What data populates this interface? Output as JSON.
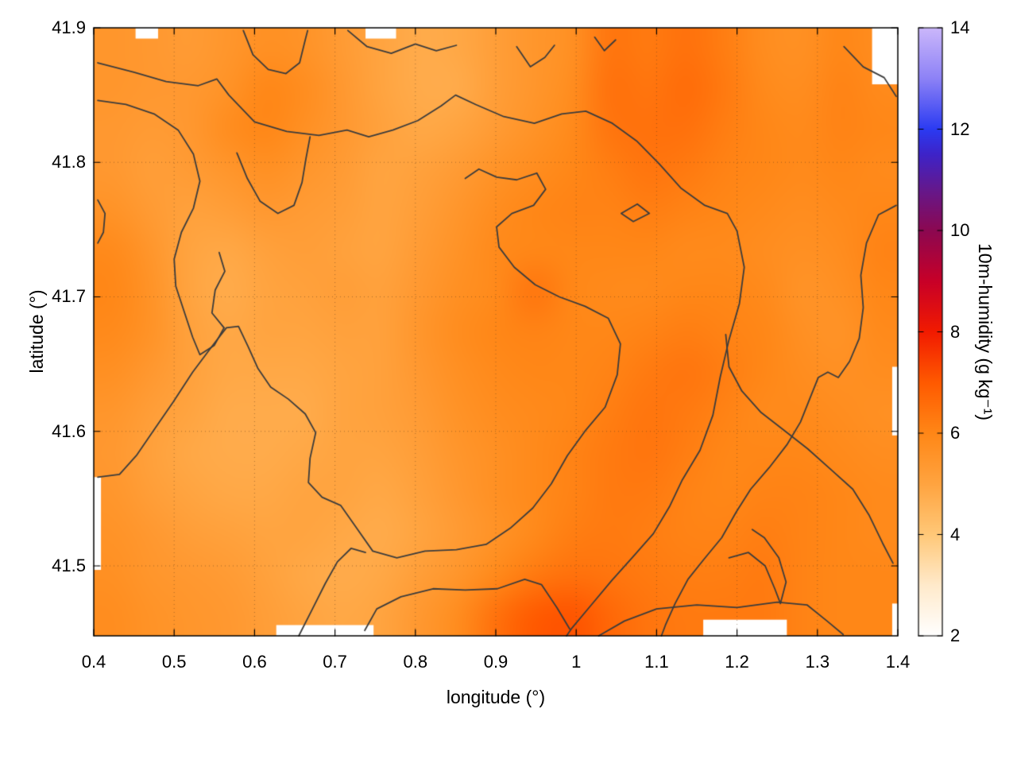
{
  "figure": {
    "background": "#ffffff"
  },
  "axes": {
    "xlabel": "longitude (°)",
    "ylabel": "latitude (°)",
    "xlim": [
      0.4,
      1.4
    ],
    "ylim": [
      41.448,
      41.9
    ],
    "xticks": [
      {
        "v": 0.4,
        "label": "0.4"
      },
      {
        "v": 0.5,
        "label": "0.5"
      },
      {
        "v": 0.6,
        "label": "0.6"
      },
      {
        "v": 0.7,
        "label": "0.7"
      },
      {
        "v": 0.8,
        "label": "0.8"
      },
      {
        "v": 0.9,
        "label": "0.9"
      },
      {
        "v": 1.0,
        "label": "1"
      },
      {
        "v": 1.1,
        "label": "1.1"
      },
      {
        "v": 1.2,
        "label": "1.2"
      },
      {
        "v": 1.3,
        "label": "1.3"
      },
      {
        "v": 1.4,
        "label": "1.4"
      }
    ],
    "yticks": [
      {
        "v": 41.5,
        "label": "41.5"
      },
      {
        "v": 41.6,
        "label": "41.6"
      },
      {
        "v": 41.7,
        "label": "41.7"
      },
      {
        "v": 41.8,
        "label": "41.8"
      },
      {
        "v": 41.9,
        "label": "41.9"
      }
    ],
    "grid_color": "rgba(90,60,30,0.5)"
  },
  "colorbar": {
    "label": "10m-humidity (g kg⁻¹)",
    "min": 2,
    "max": 14,
    "ticks": [
      {
        "v": 2,
        "label": "2"
      },
      {
        "v": 4,
        "label": "4"
      },
      {
        "v": 6,
        "label": "6"
      },
      {
        "v": 8,
        "label": "8"
      },
      {
        "v": 10,
        "label": "10"
      },
      {
        "v": 12,
        "label": "12"
      },
      {
        "v": 14,
        "label": "14"
      }
    ],
    "stops": [
      [
        2,
        "#ffffff"
      ],
      [
        3,
        "#ffeacb"
      ],
      [
        4,
        "#ffc878"
      ],
      [
        5,
        "#ffa440"
      ],
      [
        6,
        "#ff8717"
      ],
      [
        7,
        "#ff5a00"
      ],
      [
        8,
        "#f21b00"
      ],
      [
        9,
        "#c80028"
      ],
      [
        10,
        "#8c0851"
      ],
      [
        10.8,
        "#65188c"
      ],
      [
        11.5,
        "#3e23c8"
      ],
      [
        12,
        "#2b3bf2"
      ],
      [
        13,
        "#8d82f6"
      ],
      [
        14,
        "#cbb7fb"
      ]
    ]
  },
  "chart_data": {
    "type": "heatmap",
    "title": "",
    "x_range": [
      0.4,
      1.4
    ],
    "y_range": [
      41.448,
      41.9
    ],
    "value_label": "10m-humidity (g kg⁻¹)",
    "value_range_shown": [
      2,
      14
    ],
    "grid_cols": 21,
    "grid_rows": 15,
    "values": [
      [
        5.5,
        5.4,
        5.3,
        5.5,
        5.7,
        5.6,
        5.3,
        5.0,
        4.8,
        4.9,
        5.2,
        5.5,
        5.7,
        6.4,
        6.3,
        6.5,
        6.2,
        5.8,
        5.7,
        6.0,
        5.8
      ],
      [
        5.5,
        5.4,
        5.4,
        5.6,
        6.0,
        5.8,
        5.4,
        5.0,
        4.8,
        4.8,
        5.2,
        5.5,
        5.8,
        6.5,
        6.4,
        6.6,
        6.3,
        5.9,
        5.8,
        6.1,
        5.9
      ],
      [
        5.4,
        5.3,
        5.4,
        5.8,
        6.0,
        5.7,
        5.4,
        5.1,
        4.9,
        5.0,
        5.3,
        5.6,
        5.9,
        6.4,
        6.5,
        6.5,
        6.2,
        6.0,
        5.9,
        6.1,
        6.0
      ],
      [
        5.4,
        5.2,
        5.3,
        5.5,
        5.7,
        5.5,
        5.3,
        5.0,
        5.1,
        5.3,
        5.6,
        5.8,
        6.0,
        6.2,
        6.4,
        6.3,
        6.1,
        6.0,
        5.9,
        6.0,
        5.9
      ],
      [
        5.6,
        5.3,
        5.1,
        5.2,
        5.4,
        5.3,
        5.2,
        5.0,
        5.2,
        5.5,
        5.8,
        6.0,
        6.1,
        6.1,
        6.2,
        6.1,
        6.0,
        5.9,
        5.8,
        5.9,
        6.0
      ],
      [
        5.9,
        5.5,
        5.0,
        4.9,
        5.1,
        5.2,
        5.1,
        5.0,
        5.3,
        5.6,
        5.9,
        6.0,
        6.0,
        6.0,
        6.0,
        5.9,
        5.9,
        5.8,
        5.7,
        5.8,
        6.1
      ],
      [
        6.0,
        5.6,
        5.0,
        4.8,
        5.0,
        5.1,
        5.2,
        5.1,
        5.4,
        5.7,
        5.9,
        6.4,
        6.0,
        5.9,
        5.9,
        6.0,
        6.0,
        5.9,
        5.6,
        5.7,
        6.0
      ],
      [
        5.9,
        5.6,
        5.1,
        4.9,
        5.0,
        5.0,
        5.1,
        5.1,
        5.5,
        5.8,
        6.0,
        6.1,
        6.0,
        6.0,
        6.1,
        6.2,
        6.1,
        6.0,
        5.7,
        5.6,
        5.9
      ],
      [
        5.7,
        5.4,
        5.1,
        4.9,
        4.9,
        4.9,
        5.0,
        5.1,
        5.4,
        5.7,
        5.9,
        6.0,
        6.0,
        6.1,
        6.3,
        6.4,
        6.2,
        6.0,
        5.8,
        5.7,
        5.8
      ],
      [
        5.5,
        5.2,
        5.0,
        4.8,
        4.8,
        4.8,
        5.0,
        5.1,
        5.3,
        5.6,
        5.8,
        5.9,
        6.0,
        6.2,
        6.4,
        6.3,
        6.1,
        5.9,
        5.9,
        5.8,
        5.7
      ],
      [
        5.4,
        5.1,
        4.9,
        4.8,
        4.8,
        4.9,
        5.0,
        5.0,
        5.2,
        5.5,
        5.7,
        5.9,
        6.1,
        6.3,
        6.4,
        6.2,
        6.0,
        6.0,
        6.0,
        5.9,
        5.8
      ],
      [
        5.5,
        5.2,
        5.0,
        4.9,
        4.9,
        5.0,
        5.0,
        4.9,
        5.1,
        5.4,
        5.7,
        5.9,
        6.1,
        6.3,
        6.3,
        6.1,
        6.0,
        6.1,
        6.1,
        6.0,
        5.9
      ],
      [
        5.6,
        5.4,
        5.2,
        5.1,
        5.0,
        5.0,
        4.9,
        4.8,
        5.0,
        5.3,
        5.6,
        5.9,
        6.2,
        6.3,
        6.2,
        6.1,
        6.1,
        6.2,
        6.1,
        6.0,
        5.9
      ],
      [
        5.7,
        5.5,
        5.4,
        5.3,
        5.1,
        4.9,
        4.8,
        4.9,
        5.2,
        5.5,
        5.9,
        6.3,
        6.5,
        6.4,
        6.3,
        6.2,
        6.2,
        6.3,
        6.1,
        6.0,
        6.0
      ],
      [
        5.8,
        5.6,
        5.5,
        5.4,
        5.2,
        5.0,
        4.9,
        5.0,
        5.4,
        5.8,
        6.5,
        7.0,
        7.1,
        6.7,
        6.4,
        6.3,
        6.3,
        6.3,
        6.1,
        6.0,
        6.0
      ]
    ],
    "contour_color": "#3c3c3c",
    "contours": [
      [
        [
          0.405,
          41.874
        ],
        [
          0.45,
          41.867
        ],
        [
          0.49,
          41.86
        ],
        [
          0.53,
          41.857
        ],
        [
          0.553,
          41.862
        ],
        [
          0.568,
          41.85
        ],
        [
          0.6,
          41.83
        ],
        [
          0.64,
          41.823
        ],
        [
          0.68,
          41.82
        ],
        [
          0.715,
          41.824
        ],
        [
          0.742,
          41.819
        ],
        [
          0.772,
          41.824
        ],
        [
          0.803,
          41.831
        ],
        [
          0.832,
          41.842
        ],
        [
          0.85,
          41.85
        ],
        [
          0.875,
          41.843
        ],
        [
          0.91,
          41.834
        ],
        [
          0.948,
          41.829
        ],
        [
          0.982,
          41.836
        ],
        [
          1.012,
          41.838
        ],
        [
          1.045,
          41.829
        ],
        [
          1.075,
          41.816
        ],
        [
          1.103,
          41.799
        ],
        [
          1.13,
          41.781
        ],
        [
          1.16,
          41.768
        ],
        [
          1.188,
          41.762
        ],
        [
          1.2,
          41.749
        ]
      ],
      [
        [
          1.2,
          41.749
        ],
        [
          1.209,
          41.722
        ],
        [
          1.203,
          41.695
        ],
        [
          1.19,
          41.668
        ],
        [
          1.179,
          41.64
        ],
        [
          1.17,
          41.612
        ],
        [
          1.154,
          41.586
        ],
        [
          1.132,
          41.564
        ],
        [
          1.116,
          41.544
        ],
        [
          1.096,
          41.524
        ],
        [
          1.071,
          41.507
        ],
        [
          1.044,
          41.489
        ],
        [
          1.016,
          41.469
        ],
        [
          0.995,
          41.454
        ],
        [
          0.988,
          41.448
        ]
      ],
      [
        [
          1.186,
          41.672
        ],
        [
          1.19,
          41.648
        ],
        [
          1.206,
          41.63
        ],
        [
          1.23,
          41.614
        ],
        [
          1.258,
          41.601
        ],
        [
          1.288,
          41.587
        ],
        [
          1.318,
          41.571
        ],
        [
          1.344,
          41.557
        ],
        [
          1.364,
          41.538
        ],
        [
          1.381,
          41.517
        ],
        [
          1.394,
          41.502
        ]
      ],
      [
        [
          0.405,
          41.846
        ],
        [
          0.44,
          41.843
        ],
        [
          0.475,
          41.836
        ],
        [
          0.505,
          41.824
        ],
        [
          0.524,
          41.806
        ],
        [
          0.532,
          41.786
        ],
        [
          0.524,
          41.766
        ],
        [
          0.509,
          41.748
        ],
        [
          0.5,
          41.728
        ],
        [
          0.502,
          41.708
        ],
        [
          0.513,
          41.688
        ],
        [
          0.523,
          41.67
        ],
        [
          0.532,
          41.657
        ],
        [
          0.55,
          41.664
        ],
        [
          0.562,
          41.677
        ]
      ],
      [
        [
          0.405,
          41.566
        ],
        [
          0.432,
          41.568
        ],
        [
          0.453,
          41.582
        ],
        [
          0.476,
          41.602
        ],
        [
          0.499,
          41.622
        ],
        [
          0.523,
          41.644
        ],
        [
          0.548,
          41.664
        ],
        [
          0.565,
          41.677
        ],
        [
          0.58,
          41.678
        ],
        [
          0.592,
          41.663
        ],
        [
          0.604,
          41.647
        ],
        [
          0.62,
          41.633
        ],
        [
          0.642,
          41.624
        ],
        [
          0.663,
          41.613
        ],
        [
          0.676,
          41.599
        ],
        [
          0.669,
          41.58
        ],
        [
          0.667,
          41.562
        ],
        [
          0.684,
          41.551
        ],
        [
          0.707,
          41.545
        ],
        [
          0.727,
          41.528
        ],
        [
          0.747,
          41.511
        ],
        [
          0.777,
          41.506
        ],
        [
          0.812,
          41.511
        ],
        [
          0.851,
          41.512
        ],
        [
          0.888,
          41.516
        ],
        [
          0.918,
          41.528
        ],
        [
          0.946,
          41.543
        ],
        [
          0.969,
          41.561
        ],
        [
          0.989,
          41.582
        ],
        [
          1.012,
          41.601
        ],
        [
          1.036,
          41.618
        ],
        [
          1.051,
          41.642
        ],
        [
          1.055,
          41.665
        ],
        [
          1.04,
          41.684
        ],
        [
          1.011,
          41.693
        ],
        [
          0.979,
          41.7
        ],
        [
          0.949,
          41.709
        ],
        [
          0.923,
          41.722
        ],
        [
          0.904,
          41.737
        ],
        [
          0.901,
          41.752
        ],
        [
          0.92,
          41.762
        ],
        [
          0.947,
          41.768
        ],
        [
          0.962,
          41.78
        ],
        [
          0.951,
          41.792
        ],
        [
          0.926,
          41.787
        ],
        [
          0.901,
          41.789
        ],
        [
          0.879,
          41.795
        ],
        [
          0.862,
          41.788
        ]
      ],
      [
        [
          0.562,
          41.677
        ],
        [
          0.547,
          41.688
        ],
        [
          0.551,
          41.705
        ],
        [
          0.563,
          41.719
        ],
        [
          0.556,
          41.733
        ]
      ],
      [
        [
          1.398,
          41.768
        ],
        [
          1.376,
          41.761
        ],
        [
          1.361,
          41.74
        ],
        [
          1.354,
          41.716
        ],
        [
          1.357,
          41.692
        ],
        [
          1.352,
          41.669
        ],
        [
          1.34,
          41.652
        ],
        [
          1.326,
          41.64
        ],
        [
          1.313,
          41.644
        ],
        [
          1.301,
          41.64
        ],
        [
          1.291,
          41.625
        ],
        [
          1.279,
          41.607
        ],
        [
          1.262,
          41.59
        ],
        [
          1.24,
          41.573
        ],
        [
          1.217,
          41.557
        ],
        [
          1.199,
          41.54
        ],
        [
          1.181,
          41.521
        ],
        [
          1.159,
          41.505
        ],
        [
          1.139,
          41.49
        ],
        [
          1.123,
          41.472
        ],
        [
          1.111,
          41.456
        ],
        [
          1.106,
          41.448
        ]
      ],
      [
        [
          1.056,
          41.762
        ],
        [
          1.076,
          41.769
        ],
        [
          1.091,
          41.762
        ],
        [
          1.071,
          41.756
        ],
        [
          1.056,
          41.762
        ]
      ],
      [
        [
          0.586,
          41.898
        ],
        [
          0.598,
          41.88
        ],
        [
          0.617,
          41.869
        ],
        [
          0.639,
          41.866
        ],
        [
          0.656,
          41.874
        ],
        [
          0.663,
          41.891
        ],
        [
          0.666,
          41.898
        ]
      ],
      [
        [
          0.716,
          41.898
        ],
        [
          0.74,
          41.886
        ],
        [
          0.77,
          41.881
        ],
        [
          0.8,
          41.888
        ],
        [
          0.826,
          41.883
        ],
        [
          0.851,
          41.887
        ]
      ],
      [
        [
          0.926,
          41.886
        ],
        [
          0.943,
          41.871
        ],
        [
          0.961,
          41.878
        ],
        [
          0.973,
          41.887
        ]
      ],
      [
        [
          1.023,
          41.893
        ],
        [
          1.035,
          41.883
        ],
        [
          1.049,
          41.891
        ]
      ],
      [
        [
          1.333,
          41.886
        ],
        [
          1.357,
          41.871
        ],
        [
          1.383,
          41.863
        ],
        [
          1.398,
          41.849
        ]
      ],
      [
        [
          0.737,
          41.452
        ],
        [
          0.752,
          41.468
        ],
        [
          0.782,
          41.477
        ],
        [
          0.822,
          41.483
        ],
        [
          0.862,
          41.482
        ],
        [
          0.902,
          41.483
        ],
        [
          0.936,
          41.49
        ],
        [
          0.957,
          41.486
        ],
        [
          0.976,
          41.469
        ],
        [
          0.992,
          41.453
        ]
      ],
      [
        [
          1.028,
          41.448
        ],
        [
          1.06,
          41.459
        ],
        [
          1.1,
          41.468
        ],
        [
          1.15,
          41.471
        ],
        [
          1.2,
          41.469
        ],
        [
          1.25,
          41.473
        ],
        [
          1.287,
          41.471
        ],
        [
          1.312,
          41.459
        ],
        [
          1.332,
          41.449
        ]
      ],
      [
        [
          1.19,
          41.506
        ],
        [
          1.214,
          41.51
        ],
        [
          1.235,
          41.5
        ],
        [
          1.247,
          41.483
        ],
        [
          1.254,
          41.472
        ],
        [
          1.261,
          41.488
        ],
        [
          1.252,
          41.506
        ],
        [
          1.234,
          41.521
        ],
        [
          1.219,
          41.527
        ]
      ],
      [
        [
          0.405,
          41.772
        ],
        [
          0.414,
          41.762
        ],
        [
          0.412,
          41.748
        ],
        [
          0.405,
          41.74
        ]
      ],
      [
        [
          0.578,
          41.807
        ],
        [
          0.591,
          41.788
        ],
        [
          0.607,
          41.771
        ],
        [
          0.629,
          41.762
        ],
        [
          0.649,
          41.768
        ],
        [
          0.659,
          41.785
        ],
        [
          0.664,
          41.803
        ],
        [
          0.669,
          41.819
        ]
      ],
      [
        [
          0.655,
          41.448
        ],
        [
          0.672,
          41.468
        ],
        [
          0.688,
          41.487
        ],
        [
          0.703,
          41.503
        ],
        [
          0.72,
          41.513
        ],
        [
          0.738,
          41.51
        ]
      ]
    ],
    "nodata_patches": [
      [
        0.627,
        41.448,
        0.748,
        41.456
      ],
      [
        1.158,
        41.448,
        1.262,
        41.46
      ],
      [
        0.4,
        41.497,
        0.409,
        41.566
      ],
      [
        1.368,
        41.858,
        1.4,
        41.9
      ],
      [
        0.452,
        41.892,
        0.48,
        41.9
      ],
      [
        0.738,
        41.892,
        0.776,
        41.9
      ],
      [
        1.393,
        41.597,
        1.4,
        41.648
      ],
      [
        1.393,
        41.448,
        1.4,
        41.472
      ]
    ]
  }
}
